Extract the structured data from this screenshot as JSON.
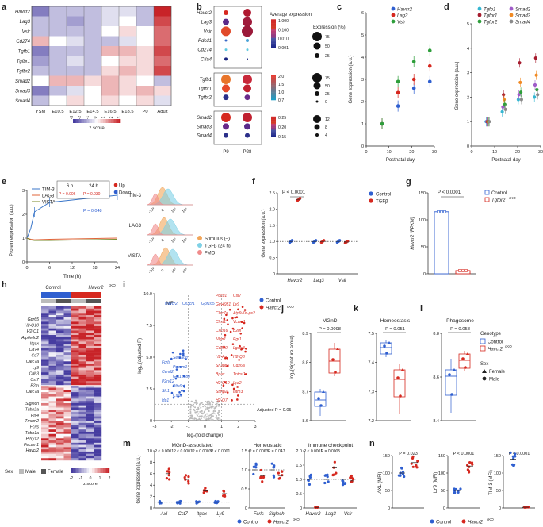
{
  "colors": {
    "red": "#d6281f",
    "blue": "#2f5fd0",
    "green": "#2e9e3b",
    "orange": "#f08a24",
    "cyan": "#35b6d1",
    "purple": "#a05cc9",
    "darkred": "#a61c2e",
    "yellow": "#e3b21a",
    "gray": "#8a8a8a",
    "tim3": "#3a76c9",
    "lag3": "#e0653a",
    "vista": "#7a8a2a",
    "stim": "#f2a65a",
    "tgfb": "#7fd1e6",
    "fmo": "#f08b8b"
  },
  "panels": {
    "a": {
      "letter": "a",
      "rows": [
        "Havcr2",
        "Lag3",
        "Vsir",
        "Cd274",
        "Tgfb1",
        "Tgfbr1",
        "Tgfbr2",
        "Smad2",
        "Smad3",
        "Smad4"
      ],
      "cols": [
        "YSM",
        "E10.5",
        "E12.5",
        "E14.5",
        "E16.5",
        "E18.5",
        "P0",
        "Adult"
      ],
      "scale_ticks": [
        "-3",
        "-2",
        "-1",
        "0",
        "1",
        "2",
        "3"
      ],
      "scale_label": "z score",
      "values": [
        [
          -2,
          -1,
          -1,
          -1,
          -0.5,
          -0.5,
          -1,
          3
        ],
        [
          -1,
          -1,
          -1.5,
          -1,
          -0.5,
          0,
          -1,
          2.5
        ],
        [
          -1,
          -1,
          -1,
          -1,
          0,
          0.5,
          0,
          2
        ],
        [
          1,
          0,
          -0.5,
          -1,
          -1,
          -0.5,
          0,
          2
        ],
        [
          -2,
          -1,
          -1,
          -1,
          1,
          1,
          0.5,
          2.5
        ],
        [
          -1.5,
          -1,
          -0.5,
          -1,
          0,
          0.5,
          0.5,
          2
        ],
        [
          -1,
          -1,
          -1,
          -1,
          0.5,
          1,
          0.5,
          2.5
        ],
        [
          0,
          1,
          1,
          0.5,
          1,
          0.5,
          0,
          -1
        ],
        [
          -2,
          -1,
          -0.5,
          0,
          1,
          0.5,
          1,
          0.5
        ],
        [
          -1,
          0,
          0.5,
          0,
          0.5,
          0,
          0.5,
          -0.5
        ]
      ]
    },
    "b": {
      "letter": "b",
      "genes1": [
        "Havcr2",
        "Lag3",
        "Vsir",
        "Pdcd1",
        "Cd274",
        "Ctla4"
      ],
      "genes2": [
        "Tgfb1",
        "Tgfbr1",
        "Tgfbr2"
      ],
      "genes3": [
        "Smad2",
        "Smad3",
        "Smad4"
      ],
      "cols": [
        "P9",
        "P28"
      ],
      "avg_label": "Average expression",
      "scale1": [
        "1.000",
        "0.100",
        "0.010",
        "0.001"
      ],
      "scale2": [
        "2.0",
        "1.5",
        "1.0",
        "0.7"
      ],
      "scale3": [
        "0.25",
        "0.20",
        "0.15"
      ],
      "pct_label": "Expression (%)",
      "size1": [
        "75",
        "50",
        "25"
      ],
      "size2": [
        "75",
        "50",
        "25",
        "0"
      ],
      "size3": [
        "12",
        "8",
        "4"
      ]
    },
    "c": {
      "letter": "c",
      "ylabel": "Gene expression (a.u.)",
      "xlabel": "Postnatal day",
      "legend": [
        "Havcr2",
        "Lag3",
        "Vsir"
      ],
      "xticks": [
        "0",
        "10",
        "20",
        "30"
      ],
      "yticks": [
        "0",
        "1",
        "2",
        "3",
        "4",
        "5",
        "6"
      ]
    },
    "d": {
      "letter": "d",
      "ylabel": "Gene expression (a.u.)",
      "xlabel": "Postnatal day",
      "legend": [
        "Tgfb1",
        "Smad2",
        "Tgfbr1",
        "Smad3",
        "Tgfbr2",
        "Smad4"
      ],
      "xticks": [
        "0",
        "10",
        "20",
        "30"
      ],
      "yticks": [
        "0",
        "1",
        "2",
        "3",
        "4",
        "5"
      ]
    },
    "e": {
      "letter": "e",
      "ylabel": "Protein expression (a.u.)",
      "xlabel": "Time (h)",
      "legend": [
        "TIM-3",
        "LAG3",
        "VISTA"
      ],
      "xticks": [
        "0",
        "6",
        "12",
        "18",
        "24"
      ],
      "yticks": [
        "0",
        "1",
        "2",
        "3"
      ],
      "box_h1": "6 h",
      "box_h2": "24 h",
      "box_p1": "P = 0.006",
      "box_p2": "P = 0.030",
      "up": "Up",
      "down": "Down",
      "p_tim3": "P = 0.048",
      "hist_labels": [
        "TIM-3",
        "LAG3",
        "VISTA"
      ],
      "hist_xlabel": "MFI",
      "hist_ticks": [
        "-10³",
        "0",
        "10³",
        "10⁴"
      ],
      "hist_legend": [
        "Stimulus (–)",
        "TGFβ (24 h)",
        "FMO"
      ]
    },
    "f": {
      "letter": "f",
      "ylabel": "Gene expression (a.u.)",
      "p": "P < 0.0001",
      "legend": [
        "Control",
        "TGFβ"
      ],
      "cats": [
        "Havcr2",
        "Lag3",
        "Vsir"
      ],
      "yticks": [
        "0",
        "0.5",
        "1.0",
        "1.5",
        "2.0",
        "2.5"
      ]
    },
    "g": {
      "letter": "g",
      "ylabel": "Havcr2 (FPKM)",
      "p": "P < 0.0001",
      "legend": [
        "Control",
        "Tgfbr2"
      ],
      "sup": "cKO",
      "yticks": [
        "0",
        "50",
        "100",
        "150"
      ]
    },
    "h": {
      "letter": "h",
      "control": "Control",
      "ko": "Havcr2",
      "genes_top": [
        "Gpr65",
        "H2-Q10",
        "H2-Q1",
        "Atp6v0d2",
        "Itgax",
        "Cd74",
        "Cd7",
        "Clec7a",
        "Ly9",
        "Cd63",
        "Cst7",
        "B2m",
        "Clec7a"
      ],
      "genes_bot": [
        "Siglech",
        "Tubb2a",
        "Pls4",
        "Tmem2",
        "Fcrls",
        "Tubb1a",
        "P2ry12",
        "Pecam1",
        "Havcr2"
      ],
      "sex_label": "Sex",
      "male": "Male",
      "female": "Female",
      "scale_ticks": [
        "-2",
        "-1",
        "0",
        "1",
        "2"
      ],
      "scale_label": "z score"
    },
    "i": {
      "letter": "i",
      "xlabel": "log₂(fold change)",
      "ylabel": "–log₁₀(adjusted P)",
      "xticks": [
        "-3",
        "-2",
        "-1",
        "0",
        "1",
        "2",
        "3"
      ],
      "yticks": [
        "0",
        "2.5",
        "5.0",
        "7.5",
        "10.0"
      ],
      "legend": [
        "Control",
        "Havcr2"
      ],
      "adj": "Adjusted P = 0.05",
      "blue_genes": [
        "Havcr2",
        "Cx3cr1",
        "Gpr165",
        "Sema6d",
        "Fcrls",
        "Pecam1",
        "Cend2",
        "Gm15880",
        "P2ry12",
        "Pltx6c1",
        "Slc1",
        "Csf1r",
        "Hp1"
      ],
      "red_genes": [
        "Pdcd1",
        "Cst7",
        "Gm4951",
        "Ly9",
        "Clec7a",
        "Atp6v0c-ps2",
        "Chst1",
        "Vcam1",
        "Cxcl16",
        "B2m",
        "Nlgn1",
        "Egr1",
        "Cd200",
        "Lgals3",
        "H2-Aa",
        "H2-Q8",
        "Sh3bp5",
        "Cd26a",
        "Bpax",
        "Tnfrsf1a",
        "H2-Q10",
        "Lyz2",
        "Stmp2",
        "Ifitm3",
        "H2-Q7"
      ]
    },
    "j": {
      "letter": "j",
      "title": "MGnD",
      "p": "P = 0.0098",
      "ylabel": "log₂(signature score)",
      "yticks": [
        "8.6",
        "8.7",
        "8.8",
        "8.9"
      ]
    },
    "k": {
      "letter": "k",
      "title": "Homeostasis",
      "p": "P = 0.051",
      "yticks": [
        "7.2",
        "7.3",
        "7.4",
        "7.5"
      ]
    },
    "l": {
      "letter": "l",
      "title": "Phagosome",
      "p": "P = 0.058",
      "yticks": [
        "8.4",
        "8.6",
        "8.8"
      ],
      "genotype": "Genotype",
      "control": "Control",
      "ko": "Havcr2",
      "sex": "Sex",
      "female": "Female",
      "male": "Male"
    },
    "m": {
      "letter": "m",
      "ylabel": "Gene expression (a.u.)",
      "g1_title": "MGnD-associated",
      "g1_cats": [
        "Axl",
        "Cst7",
        "Itgax",
        "Ly9"
      ],
      "g1_p": [
        "P < 0.0001",
        "P < 0.0001",
        "P = 0.0003",
        "P < 0.0001"
      ],
      "g2_title": "Homeostatic",
      "g2_cats": [
        "Fcrls",
        "Siglech"
      ],
      "g2_p": [
        "P = 0.0063",
        "P = 0.047"
      ],
      "g3_title": "Immune checkpoint",
      "g3_cats": [
        "Havcr2",
        "Lag3",
        "Vsir"
      ],
      "g3_p": [
        "P < 0.0001",
        "P = 0.0005"
      ],
      "yticks1": [
        "0",
        "2",
        "4",
        "6",
        "8",
        "10"
      ],
      "yticks2": [
        "0",
        "0.5",
        "1.0",
        "1.5"
      ],
      "yticks3": [
        "0",
        "0.5",
        "1.0",
        "1.5",
        "2.0"
      ],
      "legend": [
        "Control",
        "Havcr2"
      ]
    },
    "n": {
      "letter": "n",
      "titles": [
        "AXL (MFI)",
        "LY9 (MFI)",
        "TIM-3 (MFI)"
      ],
      "p": [
        "P = 0.023",
        "P < 0.0001",
        "P < 0.0001"
      ],
      "yt1": [
        "0",
        "50",
        "100",
        "150"
      ],
      "yt2": [
        "0",
        "50",
        "100",
        "150"
      ],
      "yt3": [
        "0",
        "50",
        "100",
        "150"
      ],
      "legend": [
        "Control",
        "Havcr2"
      ]
    },
    "sup_ko": "cKO"
  }
}
